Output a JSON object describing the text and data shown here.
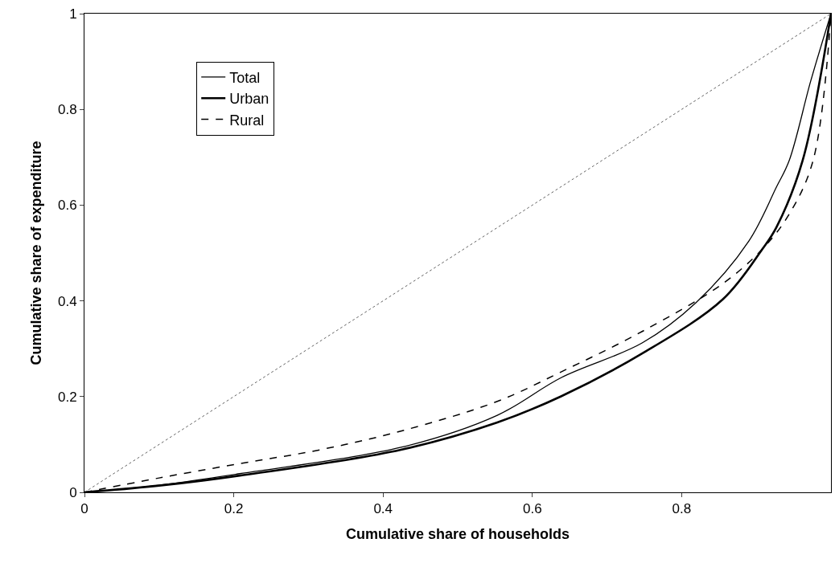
{
  "chart_data": {
    "type": "line",
    "xlabel": "Cumulative share of households",
    "ylabel": "Cumulative share of expenditure",
    "xlim": [
      0,
      1
    ],
    "ylim": [
      0,
      1
    ],
    "xticks": [
      0,
      0.2,
      0.4,
      0.6,
      0.8
    ],
    "yticks": [
      0,
      0.2,
      0.4,
      0.6,
      0.8,
      1
    ],
    "legend": "top left",
    "marker": "none",
    "series": [
      {
        "color": "#666666",
        "line_style": "dotted",
        "x": [
          0,
          1
        ],
        "values": [
          0,
          1
        ]
      },
      {
        "name": "Total",
        "color": "#000000",
        "line_style": "solid",
        "x": [
          0,
          0.1,
          0.208,
          0.424,
          0.553,
          0.639,
          0.747,
          0.819,
          0.89,
          0.927,
          0.944,
          0.973,
          1
        ],
        "values": [
          0,
          0.015,
          0.039,
          0.094,
          0.161,
          0.24,
          0.312,
          0.396,
          0.525,
          0.638,
          0.693,
          0.86,
          1
        ]
      },
      {
        "name": "Urban",
        "color": "#000000",
        "line_style": "solid",
        "x": [
          0,
          0.1,
          0.208,
          0.424,
          0.553,
          0.639,
          0.747,
          0.855,
          0.908,
          0.927,
          0.962,
          1
        ],
        "values": [
          0,
          0.014,
          0.035,
          0.089,
          0.146,
          0.201,
          0.29,
          0.403,
          0.508,
          0.554,
          0.693,
          1
        ]
      },
      {
        "name": "Rural",
        "color": "#000000",
        "line_style": "dashed",
        "x": [
          0,
          0.1,
          0.208,
          0.316,
          0.424,
          0.553,
          0.639,
          0.747,
          0.855,
          0.908,
          0.944,
          0.976,
          1
        ],
        "values": [
          0,
          0.03,
          0.06,
          0.089,
          0.128,
          0.19,
          0.252,
          0.336,
          0.436,
          0.508,
          0.581,
          0.693,
          1
        ]
      }
    ]
  }
}
